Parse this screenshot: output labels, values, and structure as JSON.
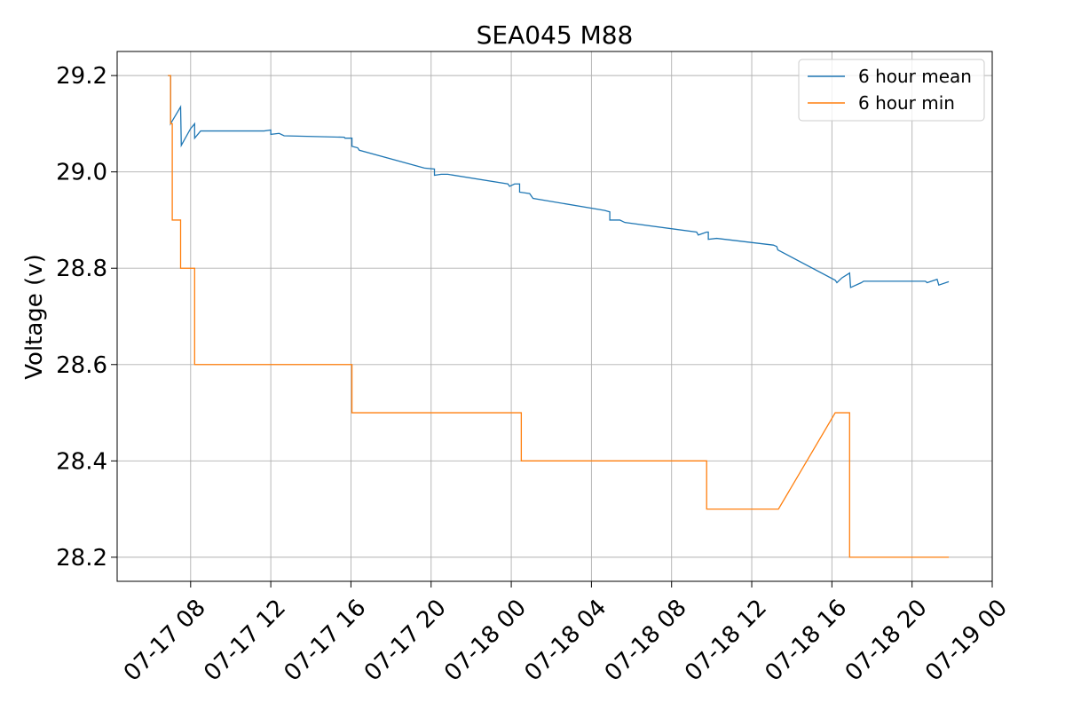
{
  "chart_data": {
    "type": "line",
    "title": "SEA045 M88",
    "xlabel": "",
    "ylabel": "Voltage (v)",
    "x_axis_type": "datetime",
    "xlim": [
      "2022-07-17T04:20",
      "2022-07-19T00:00"
    ],
    "ylim": [
      28.15,
      29.25
    ],
    "x_ticks": [
      "2022-07-17T08:00",
      "2022-07-17T12:00",
      "2022-07-17T16:00",
      "2022-07-17T20:00",
      "2022-07-18T00:00",
      "2022-07-18T04:00",
      "2022-07-18T08:00",
      "2022-07-18T12:00",
      "2022-07-18T16:00",
      "2022-07-18T20:00",
      "2022-07-19T00:00"
    ],
    "x_tick_labels": [
      "07-17 08",
      "07-17 12",
      "07-17 16",
      "07-17 20",
      "07-18 00",
      "07-18 04",
      "07-18 08",
      "07-18 12",
      "07-18 16",
      "07-18 20",
      "07-19 00"
    ],
    "y_ticks": [
      28.2,
      28.4,
      28.6,
      28.8,
      29.0,
      29.2
    ],
    "y_tick_labels": [
      "28.2",
      "28.4",
      "28.6",
      "28.8",
      "29.0",
      "29.2"
    ],
    "grid": true,
    "legend_position": "top-right",
    "series": [
      {
        "name": "6 hour mean",
        "color": "#1f77b4",
        "points": [
          [
            "2022-07-17T06:52",
            29.2
          ],
          [
            "2022-07-17T07:00",
            29.2
          ],
          [
            "2022-07-17T07:00",
            29.1
          ],
          [
            "2022-07-17T07:30",
            29.135
          ],
          [
            "2022-07-17T07:32",
            29.055
          ],
          [
            "2022-07-17T08:00",
            29.09
          ],
          [
            "2022-07-17T08:12",
            29.1
          ],
          [
            "2022-07-17T08:12",
            29.07
          ],
          [
            "2022-07-17T08:30",
            29.085
          ],
          [
            "2022-07-17T11:40",
            29.085
          ],
          [
            "2022-07-17T12:00",
            29.087
          ],
          [
            "2022-07-17T12:00",
            29.078
          ],
          [
            "2022-07-17T12:25",
            29.08
          ],
          [
            "2022-07-17T12:40",
            29.075
          ],
          [
            "2022-07-17T15:40",
            29.072
          ],
          [
            "2022-07-17T15:42",
            29.07
          ],
          [
            "2022-07-17T16:03",
            29.07
          ],
          [
            "2022-07-17T16:03",
            29.053
          ],
          [
            "2022-07-17T16:20",
            29.05
          ],
          [
            "2022-07-17T16:25",
            29.045
          ],
          [
            "2022-07-17T19:40",
            29.008
          ],
          [
            "2022-07-17T20:10",
            29.006
          ],
          [
            "2022-07-17T20:10",
            28.993
          ],
          [
            "2022-07-17T20:30",
            28.995
          ],
          [
            "2022-07-17T20:50",
            28.995
          ],
          [
            "2022-07-17T23:50",
            28.975
          ],
          [
            "2022-07-17T23:55",
            28.97
          ],
          [
            "2022-07-18T00:10",
            28.975
          ],
          [
            "2022-07-18T00:25",
            28.975
          ],
          [
            "2022-07-18T00:25",
            28.958
          ],
          [
            "2022-07-18T00:55",
            28.955
          ],
          [
            "2022-07-18T01:05",
            28.945
          ],
          [
            "2022-07-18T04:40",
            28.92
          ],
          [
            "2022-07-18T04:55",
            28.917
          ],
          [
            "2022-07-18T04:55",
            28.9
          ],
          [
            "2022-07-18T05:25",
            28.9
          ],
          [
            "2022-07-18T05:40",
            28.895
          ],
          [
            "2022-07-18T09:15",
            28.875
          ],
          [
            "2022-07-18T09:20",
            28.869
          ],
          [
            "2022-07-18T09:45",
            28.875
          ],
          [
            "2022-07-18T09:50",
            28.875
          ],
          [
            "2022-07-18T09:50",
            28.86
          ],
          [
            "2022-07-18T10:15",
            28.862
          ],
          [
            "2022-07-18T13:05",
            28.848
          ],
          [
            "2022-07-18T13:15",
            28.845
          ],
          [
            "2022-07-18T13:18",
            28.838
          ],
          [
            "2022-07-18T16:10",
            28.775
          ],
          [
            "2022-07-18T16:15",
            28.77
          ],
          [
            "2022-07-18T16:30",
            28.78
          ],
          [
            "2022-07-18T16:53",
            28.79
          ],
          [
            "2022-07-18T16:56",
            28.76
          ],
          [
            "2022-07-18T17:28",
            28.77
          ],
          [
            "2022-07-18T17:35",
            28.773
          ],
          [
            "2022-07-18T20:00",
            28.773
          ],
          [
            "2022-07-18T20:40",
            28.773
          ],
          [
            "2022-07-18T20:45",
            28.77
          ],
          [
            "2022-07-18T21:15",
            28.777
          ],
          [
            "2022-07-18T21:20",
            28.765
          ],
          [
            "2022-07-18T21:50",
            28.772
          ]
        ]
      },
      {
        "name": "6 hour min",
        "color": "#ff7f0e",
        "points": [
          [
            "2022-07-17T06:52",
            29.2
          ],
          [
            "2022-07-17T07:00",
            29.2
          ],
          [
            "2022-07-17T07:00",
            29.1
          ],
          [
            "2022-07-17T07:05",
            29.1
          ],
          [
            "2022-07-17T07:05",
            28.9
          ],
          [
            "2022-07-17T07:30",
            28.9
          ],
          [
            "2022-07-17T07:30",
            28.8
          ],
          [
            "2022-07-17T08:12",
            28.8
          ],
          [
            "2022-07-17T08:12",
            28.6
          ],
          [
            "2022-07-17T16:03",
            28.6
          ],
          [
            "2022-07-17T16:03",
            28.5
          ],
          [
            "2022-07-18T00:30",
            28.5
          ],
          [
            "2022-07-18T00:30",
            28.4
          ],
          [
            "2022-07-18T09:45",
            28.4
          ],
          [
            "2022-07-18T09:45",
            28.3
          ],
          [
            "2022-07-18T13:20",
            28.3
          ],
          [
            "2022-07-18T16:10",
            28.5
          ],
          [
            "2022-07-18T16:53",
            28.5
          ],
          [
            "2022-07-18T16:53",
            28.2
          ],
          [
            "2022-07-18T21:50",
            28.2
          ]
        ]
      }
    ]
  }
}
